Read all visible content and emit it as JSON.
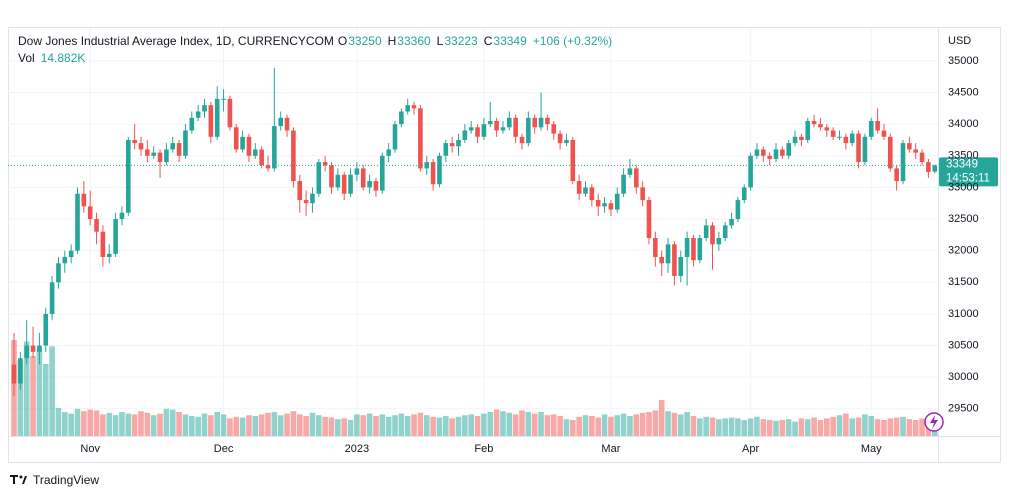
{
  "chart_data": {
    "type": "candlestick",
    "title": "Dow Jones Industrial Average Index, 1D, CURRENCYCOM",
    "ohlc_labels": [
      "O",
      "H",
      "L",
      "C"
    ],
    "change": "+106 (+0.32%)",
    "volume_name": "Vol",
    "volume_label": "14.882K",
    "currency": "USD",
    "countdown": "14:53:11",
    "up_color": "#26a69a",
    "down_color": "#ef5350",
    "grid": true,
    "ylim": [
      29070,
      35520
    ],
    "yticks": [
      29500,
      30000,
      30500,
      31000,
      31500,
      32000,
      32500,
      33000,
      33500,
      34000,
      34500,
      35000
    ],
    "categories": [
      null,
      null,
      null,
      null,
      null,
      null,
      null,
      null,
      null,
      null,
      null,
      null,
      "Nov",
      null,
      null,
      null,
      null,
      null,
      null,
      null,
      null,
      null,
      null,
      null,
      null,
      null,
      null,
      null,
      null,
      null,
      null,
      null,
      null,
      "Dec",
      null,
      null,
      null,
      null,
      null,
      null,
      null,
      null,
      null,
      null,
      null,
      null,
      null,
      null,
      null,
      null,
      null,
      null,
      null,
      null,
      "2023",
      null,
      null,
      null,
      null,
      null,
      null,
      null,
      null,
      null,
      null,
      null,
      null,
      null,
      null,
      null,
      null,
      null,
      null,
      null,
      "Feb",
      null,
      null,
      null,
      null,
      null,
      null,
      null,
      null,
      null,
      null,
      null,
      null,
      null,
      null,
      null,
      null,
      null,
      null,
      null,
      "Mar",
      null,
      null,
      null,
      null,
      null,
      null,
      null,
      null,
      null,
      null,
      null,
      null,
      null,
      null,
      null,
      null,
      null,
      null,
      null,
      null,
      null,
      "Apr",
      null,
      null,
      null,
      null,
      null,
      null,
      null,
      null,
      null,
      null,
      null,
      null,
      null,
      null,
      null,
      null,
      null,
      null,
      "May",
      null,
      null,
      null,
      null,
      null,
      null,
      null,
      null,
      null,
      null
    ],
    "ohlc": [
      [
        30200,
        30700,
        29700,
        29900
      ],
      [
        29900,
        30400,
        29800,
        30300
      ],
      [
        30300,
        30900,
        30200,
        30500
      ],
      [
        30500,
        30800,
        30300,
        30400
      ],
      [
        30400,
        30700,
        30200,
        30500
      ],
      [
        30500,
        31100,
        30400,
        31000
      ],
      [
        31000,
        31600,
        30900,
        31500
      ],
      [
        31500,
        31900,
        31400,
        31800
      ],
      [
        31800,
        32000,
        31650,
        31900
      ],
      [
        31900,
        32100,
        31800,
        32000
      ],
      [
        32000,
        33000,
        31950,
        32900
      ],
      [
        32900,
        33100,
        32600,
        32700
      ],
      [
        32700,
        32950,
        32400,
        32500
      ],
      [
        32500,
        32600,
        32100,
        32300
      ],
      [
        32300,
        32400,
        31750,
        31900
      ],
      [
        31900,
        32100,
        31800,
        31950
      ],
      [
        31950,
        32600,
        31900,
        32500
      ],
      [
        32500,
        32700,
        32400,
        32600
      ],
      [
        32600,
        33800,
        32550,
        33750
      ],
      [
        33750,
        34000,
        33600,
        33700
      ],
      [
        33700,
        33800,
        33500,
        33600
      ],
      [
        33600,
        33750,
        33400,
        33500
      ],
      [
        33500,
        33650,
        33450,
        33550
      ],
      [
        33550,
        33600,
        33150,
        33400
      ],
      [
        33400,
        33700,
        33350,
        33600
      ],
      [
        33600,
        33800,
        33550,
        33700
      ],
      [
        33700,
        33750,
        33400,
        33500
      ],
      [
        33500,
        34000,
        33450,
        33900
      ],
      [
        33900,
        34200,
        33850,
        34100
      ],
      [
        34100,
        34300,
        34050,
        34200
      ],
      [
        34200,
        34400,
        34100,
        34300
      ],
      [
        34300,
        34350,
        33700,
        33800
      ],
      [
        33800,
        34600,
        33750,
        34400
      ],
      [
        34400,
        34550,
        34200,
        34400
      ],
      [
        34400,
        34450,
        33900,
        33950
      ],
      [
        33950,
        34000,
        33550,
        33600
      ],
      [
        33600,
        33900,
        33550,
        33800
      ],
      [
        33800,
        33850,
        33400,
        33500
      ],
      [
        33500,
        33700,
        33450,
        33600
      ],
      [
        33600,
        33650,
        33300,
        33350
      ],
      [
        33350,
        33500,
        33250,
        33300
      ],
      [
        33300,
        34890,
        33250,
        33970
      ],
      [
        33970,
        34200,
        33900,
        34100
      ],
      [
        34100,
        34150,
        33800,
        33900
      ],
      [
        33900,
        33950,
        33000,
        33100
      ],
      [
        33100,
        33200,
        32600,
        32800
      ],
      [
        32800,
        32950,
        32550,
        32750
      ],
      [
        32750,
        33000,
        32600,
        32900
      ],
      [
        32900,
        33450,
        32850,
        33400
      ],
      [
        33400,
        33500,
        33250,
        33350
      ],
      [
        33350,
        33400,
        32900,
        33000
      ],
      [
        33000,
        33300,
        32950,
        33200
      ],
      [
        33200,
        33250,
        32800,
        32900
      ],
      [
        32900,
        33300,
        32850,
        33200
      ],
      [
        33200,
        33400,
        33100,
        33300
      ],
      [
        33300,
        33350,
        32950,
        33000
      ],
      [
        33000,
        33200,
        32900,
        33100
      ],
      [
        33100,
        33150,
        32850,
        32950
      ],
      [
        32950,
        33550,
        32900,
        33500
      ],
      [
        33500,
        33700,
        33400,
        33600
      ],
      [
        33600,
        34050,
        33550,
        34000
      ],
      [
        34000,
        34250,
        33950,
        34200
      ],
      [
        34200,
        34400,
        34150,
        34300
      ],
      [
        34300,
        34350,
        34150,
        34250
      ],
      [
        34250,
        34300,
        33250,
        33300
      ],
      [
        33300,
        33500,
        33200,
        33400
      ],
      [
        33400,
        33450,
        32950,
        33050
      ],
      [
        33050,
        33550,
        33000,
        33500
      ],
      [
        33500,
        33750,
        33400,
        33700
      ],
      [
        33700,
        33800,
        33550,
        33650
      ],
      [
        33650,
        33850,
        33500,
        33750
      ],
      [
        33750,
        34000,
        33700,
        33900
      ],
      [
        33900,
        34050,
        33850,
        33950
      ],
      [
        33950,
        34000,
        33700,
        33800
      ],
      [
        33800,
        34100,
        33750,
        34000
      ],
      [
        34000,
        34350,
        33950,
        34050
      ],
      [
        34050,
        34100,
        33800,
        33900
      ],
      [
        33900,
        34050,
        33850,
        33950
      ],
      [
        33950,
        34200,
        33900,
        34100
      ],
      [
        34100,
        34150,
        33700,
        33800
      ],
      [
        33800,
        33850,
        33600,
        33700
      ],
      [
        33700,
        34200,
        33650,
        34100
      ],
      [
        34100,
        34150,
        33850,
        33950
      ],
      [
        33950,
        34500,
        33900,
        34100
      ],
      [
        34100,
        34150,
        33900,
        34000
      ],
      [
        34000,
        34050,
        33750,
        33850
      ],
      [
        33850,
        33900,
        33600,
        33700
      ],
      [
        33700,
        33850,
        33650,
        33750
      ],
      [
        33750,
        33800,
        33050,
        33100
      ],
      [
        33100,
        33200,
        32800,
        32900
      ],
      [
        32900,
        33100,
        32850,
        33000
      ],
      [
        33000,
        33050,
        32700,
        32800
      ],
      [
        32800,
        32900,
        32550,
        32700
      ],
      [
        32700,
        32850,
        32600,
        32750
      ],
      [
        32750,
        32800,
        32550,
        32650
      ],
      [
        32650,
        33000,
        32600,
        32900
      ],
      [
        32900,
        33300,
        32850,
        33200
      ],
      [
        33200,
        33450,
        33150,
        33300
      ],
      [
        33300,
        33350,
        32900,
        33000
      ],
      [
        33000,
        33100,
        32700,
        32800
      ],
      [
        32800,
        32850,
        32100,
        32200
      ],
      [
        32200,
        32300,
        31750,
        31900
      ],
      [
        31900,
        32000,
        31600,
        31800
      ],
      [
        31800,
        32200,
        31650,
        32100
      ],
      [
        32100,
        32150,
        31450,
        31600
      ],
      [
        31600,
        32000,
        31500,
        31900
      ],
      [
        31900,
        32300,
        31450,
        32200
      ],
      [
        32200,
        32250,
        31750,
        31850
      ],
      [
        31850,
        32250,
        31800,
        32200
      ],
      [
        32200,
        32500,
        32150,
        32400
      ],
      [
        32400,
        32450,
        31700,
        32100
      ],
      [
        32100,
        32300,
        32000,
        32200
      ],
      [
        32200,
        32450,
        32150,
        32400
      ],
      [
        32400,
        32600,
        32350,
        32500
      ],
      [
        32500,
        32850,
        32450,
        32800
      ],
      [
        32800,
        33050,
        32750,
        33000
      ],
      [
        33000,
        33550,
        32950,
        33500
      ],
      [
        33500,
        33700,
        33450,
        33600
      ],
      [
        33600,
        33650,
        33400,
        33500
      ],
      [
        33500,
        33550,
        33350,
        33450
      ],
      [
        33450,
        33700,
        33400,
        33600
      ],
      [
        33600,
        33650,
        33450,
        33500
      ],
      [
        33500,
        33750,
        33450,
        33700
      ],
      [
        33700,
        33900,
        33650,
        33800
      ],
      [
        33800,
        33850,
        33650,
        33750
      ],
      [
        33750,
        34100,
        33700,
        34050
      ],
      [
        34050,
        34150,
        33950,
        34000
      ],
      [
        34000,
        34100,
        33900,
        33950
      ],
      [
        33950,
        34000,
        33800,
        33900
      ],
      [
        33900,
        33950,
        33750,
        33800
      ],
      [
        33800,
        33900,
        33750,
        33800
      ],
      [
        33800,
        33850,
        33600,
        33700
      ],
      [
        33700,
        33900,
        33650,
        33850
      ],
      [
        33850,
        33900,
        33300,
        33400
      ],
      [
        33400,
        33850,
        33350,
        33800
      ],
      [
        33800,
        34100,
        33750,
        34050
      ],
      [
        34050,
        34250,
        33850,
        33900
      ],
      [
        33900,
        34000,
        33750,
        33800
      ],
      [
        33800,
        33850,
        33250,
        33300
      ],
      [
        33300,
        33350,
        32950,
        33100
      ],
      [
        33100,
        33750,
        33050,
        33700
      ],
      [
        33700,
        33800,
        33550,
        33600
      ],
      [
        33600,
        33700,
        33450,
        33550
      ],
      [
        33550,
        33600,
        33350,
        33400
      ],
      [
        33400,
        33450,
        33150,
        33243
      ],
      [
        33250,
        33360,
        33223,
        33349
      ]
    ],
    "volume": [
      120000,
      95000,
      118000,
      100000,
      110000,
      90000,
      112000,
      35000,
      30000,
      28000,
      34000,
      31000,
      33000,
      32000,
      27000,
      29000,
      26000,
      30000,
      28000,
      27000,
      31000,
      29000,
      26000,
      28000,
      34000,
      33000,
      30000,
      27000,
      25000,
      24000,
      28000,
      26000,
      30000,
      27000,
      22000,
      24000,
      23000,
      26000,
      25000,
      27000,
      29000,
      30000,
      26000,
      28000,
      31000,
      27000,
      25000,
      29000,
      26000,
      24000,
      23000,
      21000,
      22000,
      20000,
      27000,
      26000,
      28000,
      25000,
      27000,
      24000,
      26000,
      28000,
      25000,
      27000,
      29000,
      26000,
      24000,
      23000,
      25000,
      22000,
      24000,
      26000,
      27000,
      25000,
      28000,
      30000,
      33000,
      31000,
      29000,
      27000,
      32000,
      30000,
      28000,
      30000,
      26000,
      27000,
      25000,
      21000,
      20000,
      24000,
      26000,
      25000,
      23000,
      27000,
      24000,
      26000,
      28000,
      25000,
      27000,
      29000,
      30000,
      32000,
      45000,
      31000,
      29000,
      27000,
      30000,
      25000,
      22000,
      24000,
      23000,
      21000,
      22000,
      23000,
      22000,
      20000,
      22000,
      24000,
      21000,
      20000,
      19000,
      20000,
      21000,
      18000,
      22000,
      21000,
      23000,
      20000,
      22000,
      24000,
      26000,
      28000,
      22000,
      23000,
      27000,
      25000,
      21000,
      20000,
      22000,
      23000,
      24000,
      21000,
      20000,
      22000,
      18000,
      14882
    ]
  },
  "footer": {
    "brand": "TradingView"
  }
}
